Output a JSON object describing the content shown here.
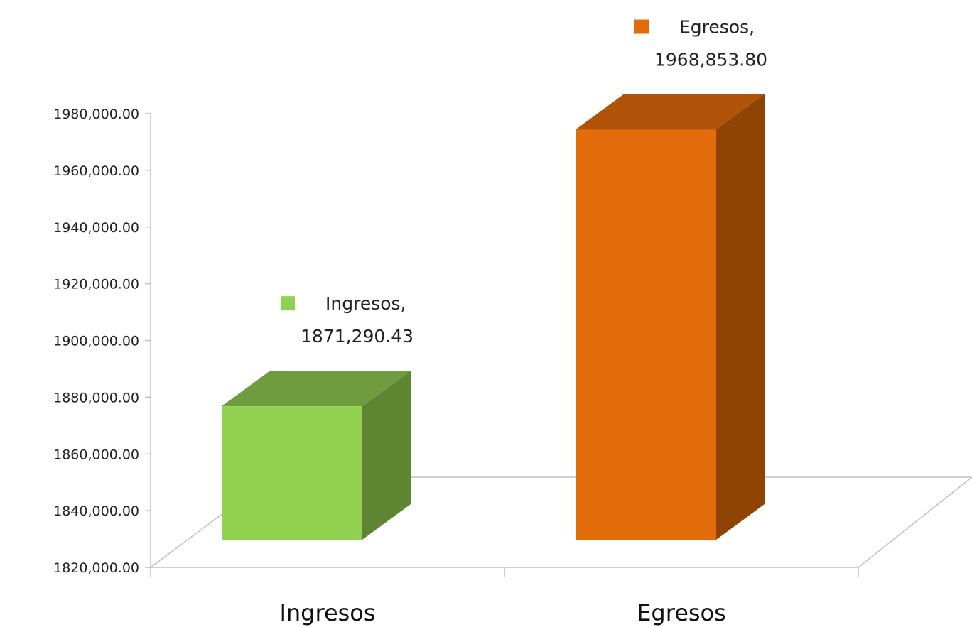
{
  "chart_data": {
    "type": "bar",
    "style": "3d-column",
    "categories": [
      "Ingresos",
      "Egresos"
    ],
    "values": [
      1871290.43,
      1968853.8
    ],
    "data_labels": [
      {
        "name": "Ingresos,",
        "value": "1871,290.43"
      },
      {
        "name": "Egresos,",
        "value": "1968,853.80"
      }
    ],
    "ylim": [
      1820000,
      1980000
    ],
    "yticks": [
      1820000,
      1840000,
      1860000,
      1880000,
      1900000,
      1920000,
      1940000,
      1960000,
      1980000
    ],
    "ytick_labels": [
      "1820,000.00",
      "1840,000.00",
      "1860,000.00",
      "1880,000.00",
      "1900,000.00",
      "1920,000.00",
      "1940,000.00",
      "1960,000.00",
      "1980,000.00"
    ],
    "title": "",
    "xlabel": "",
    "ylabel": "",
    "grid": false,
    "legend": "none",
    "colors": {
      "Ingresos": {
        "front": "#92d050",
        "top": "#6f9c3e",
        "side": "#5e8532"
      },
      "Egresos": {
        "front": "#e36c0a",
        "top": "#b05208",
        "side": "#904404"
      }
    }
  }
}
